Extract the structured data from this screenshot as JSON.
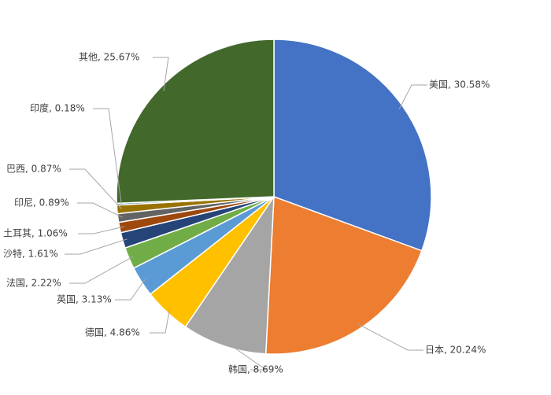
{
  "chart_data": {
    "type": "pie",
    "values": [
      30.58,
      20.24,
      8.69,
      4.86,
      3.13,
      2.22,
      1.61,
      1.06,
      0.89,
      0.87,
      0.18,
      25.67
    ],
    "value_labels": [
      "美国, 30.58%",
      "日本, 20.24%",
      "韩国, 8.69%",
      "德国, 4.86%",
      "英国, 3.13%",
      "法国, 2.22%",
      "沙特, 1.61%",
      "土耳其, 1.06%",
      "印尼, 0.89%",
      "巴西, 0.87%",
      "印度, 0.18%",
      "其他, 25.67%"
    ],
    "colors": [
      "#4472c4",
      "#ed7d31",
      "#a5a5a5",
      "#ffc000",
      "#5b9bd5",
      "#70ad47",
      "#264478",
      "#9e480e",
      "#636363",
      "#997300",
      "#255e91",
      "#43682b"
    ]
  }
}
